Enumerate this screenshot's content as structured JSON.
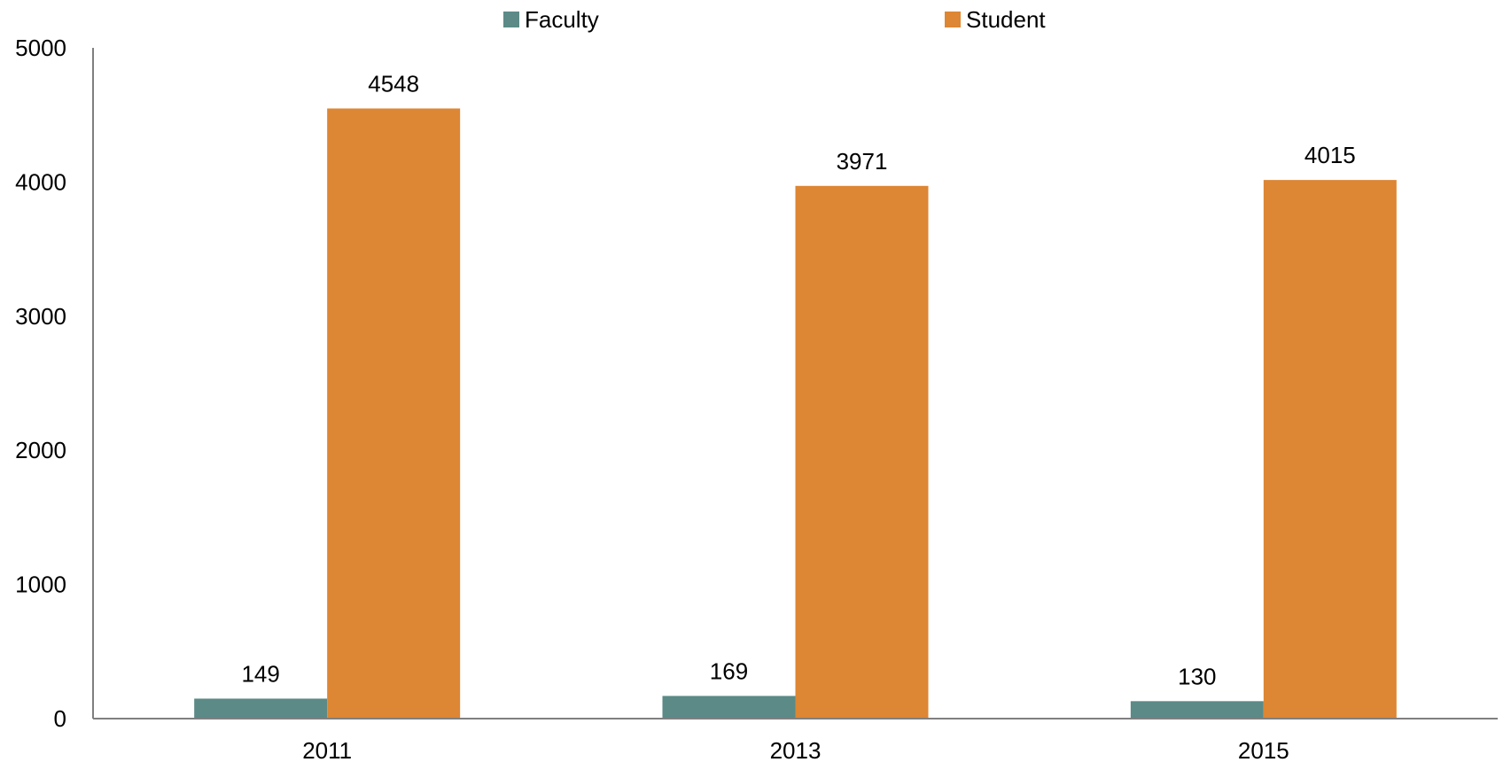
{
  "chart_data": {
    "type": "bar",
    "categories": [
      "2011",
      "2013",
      "2015"
    ],
    "series": [
      {
        "name": "Faculty",
        "values": [
          149,
          169,
          130
        ],
        "color": "#5b8a87"
      },
      {
        "name": "Student",
        "values": [
          4548,
          3971,
          4015
        ],
        "color": "#dd8633"
      }
    ],
    "ylim": [
      0,
      5000
    ],
    "yticks": [
      0,
      1000,
      2000,
      3000,
      4000,
      5000
    ],
    "legend_position": "top-center",
    "grid": false,
    "data_labels": true
  }
}
